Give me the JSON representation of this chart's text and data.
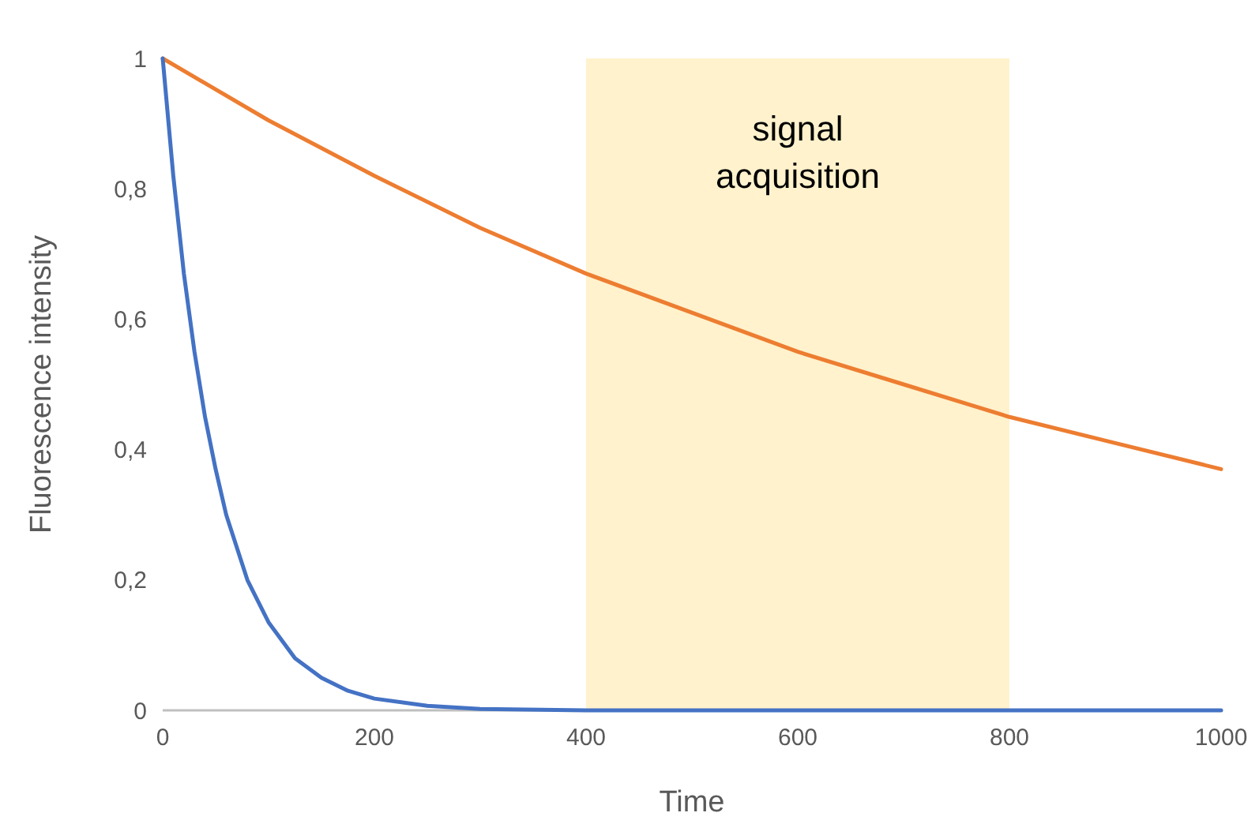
{
  "chart_data": {
    "type": "line",
    "xlabel": "Time",
    "ylabel": "Fluorescence intensity",
    "xlim": [
      0,
      1000
    ],
    "xticks": [
      0,
      200,
      400,
      600,
      800,
      1000
    ],
    "ylim": [
      0,
      1
    ],
    "yticks": [
      0,
      {
        "value": 0.2,
        "label": "0,2"
      },
      {
        "value": 0.4,
        "label": "0,4"
      },
      {
        "value": 0.6,
        "label": "0,6"
      },
      {
        "value": 0.8,
        "label": "0,8"
      },
      1
    ],
    "grid": false,
    "marker": "none",
    "line_style": "solid",
    "bands": [
      {
        "axis": "x",
        "from": 400,
        "to": 800,
        "label": "signal acquisition",
        "color": "#fff2cc"
      }
    ],
    "series": [
      {
        "color": "#ed7d31",
        "x": [
          0,
          100,
          200,
          300,
          400,
          500,
          600,
          700,
          800,
          900,
          1000
        ],
        "values": [
          1,
          0.905,
          0.82,
          0.74,
          0.67,
          0.61,
          0.55,
          0.5,
          0.45,
          0.41,
          0.37
        ]
      },
      {
        "color": "#4472c4",
        "x": [
          0,
          10,
          20,
          30,
          40,
          50,
          60,
          80,
          100,
          125,
          150,
          175,
          200,
          250,
          300,
          400,
          600,
          800,
          1000
        ],
        "values": [
          1,
          0.82,
          0.67,
          0.55,
          0.45,
          0.37,
          0.3,
          0.2,
          0.135,
          0.08,
          0.05,
          0.03,
          0.018,
          0.007,
          0.002,
          0,
          0,
          0,
          0
        ]
      }
    ]
  }
}
